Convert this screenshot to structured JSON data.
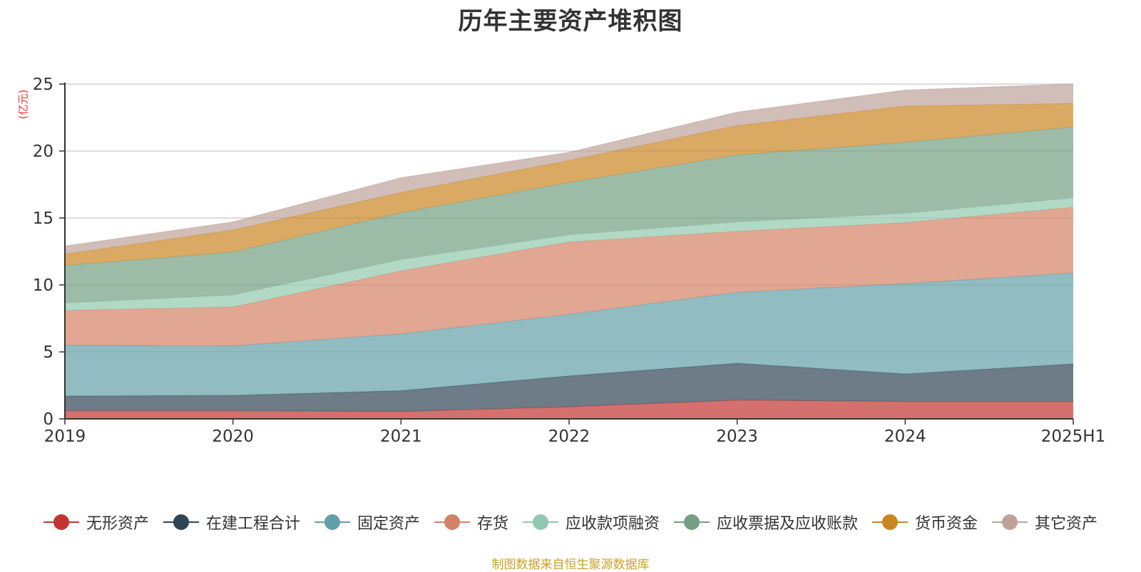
{
  "chart_data": {
    "type": "area",
    "stacked": true,
    "title": "历年主要资产堆积图",
    "ylabel": "(亿元)",
    "ylim": [
      0,
      25
    ],
    "yticks": [
      "0",
      "5",
      "10",
      "15",
      "20",
      "25"
    ],
    "categories": [
      "2019",
      "2020",
      "2021",
      "2022",
      "2023",
      "2024",
      "2025H1"
    ],
    "grid": true,
    "legend_position": "bottom",
    "series": [
      {
        "name": "无形资产",
        "color": "#c23531",
        "values": [
          0.6,
          0.6,
          0.55,
          0.9,
          1.4,
          1.3,
          1.3
        ]
      },
      {
        "name": "在建工程合计",
        "color": "#2f4554",
        "values": [
          1.1,
          1.15,
          1.55,
          2.3,
          2.75,
          2.05,
          2.8
        ]
      },
      {
        "name": "固定资产",
        "color": "#61a0a8",
        "values": [
          3.8,
          3.7,
          4.25,
          4.6,
          5.3,
          6.75,
          6.8
        ]
      },
      {
        "name": "存货",
        "color": "#d48265",
        "values": [
          2.6,
          2.9,
          4.7,
          5.4,
          4.55,
          4.55,
          4.9
        ]
      },
      {
        "name": "应收款项融资",
        "color": "#91c7ae",
        "values": [
          0.55,
          0.9,
          0.85,
          0.55,
          0.7,
          0.7,
          0.7
        ]
      },
      {
        "name": "应收票据及应收账款",
        "color": "#749f83",
        "values": [
          2.8,
          3.2,
          3.5,
          3.9,
          5.0,
          5.3,
          5.3
        ]
      },
      {
        "name": "货币资金",
        "color": "#ca8622",
        "values": [
          0.85,
          1.65,
          1.5,
          1.65,
          2.2,
          2.7,
          1.75
        ]
      },
      {
        "name": "其它资产",
        "color": "#bda29a",
        "values": [
          0.6,
          0.6,
          1.1,
          0.6,
          1.0,
          1.2,
          1.45
        ]
      }
    ]
  },
  "source_note": "制图数据来自恒生聚源数据库"
}
